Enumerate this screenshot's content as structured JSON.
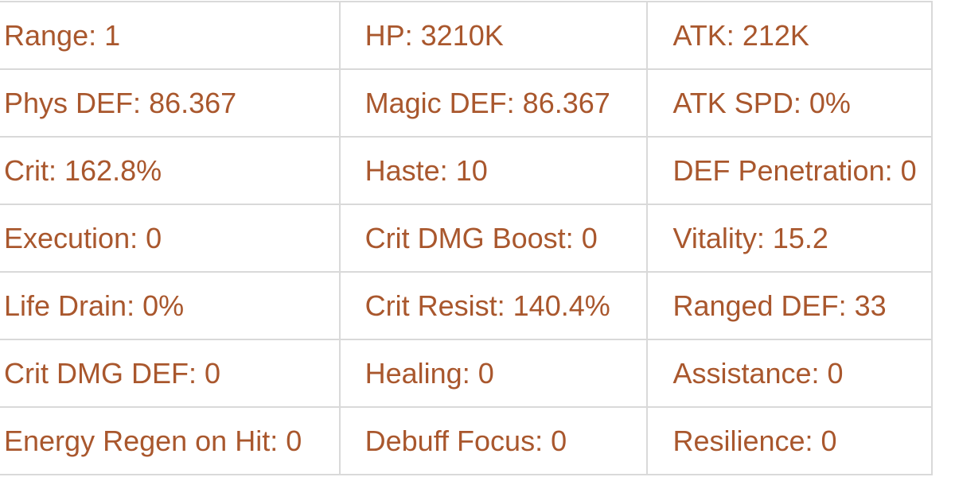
{
  "theme": {
    "text_color": "#a9572d",
    "border_color": "#d9d9d9",
    "background_color": "#ffffff"
  },
  "stats_table": {
    "separator": ": ",
    "rows": [
      [
        {
          "label": "Range",
          "value": "1"
        },
        {
          "label": "HP",
          "value": "3210K"
        },
        {
          "label": "ATK",
          "value": "212K"
        }
      ],
      [
        {
          "label": "Phys DEF",
          "value": "86.367"
        },
        {
          "label": "Magic DEF",
          "value": "86.367"
        },
        {
          "label": "ATK SPD",
          "value": "0%"
        }
      ],
      [
        {
          "label": "Crit",
          "value": "162.8%"
        },
        {
          "label": "Haste",
          "value": "10"
        },
        {
          "label": "DEF Penetration",
          "value": "0"
        }
      ],
      [
        {
          "label": "Execution",
          "value": "0"
        },
        {
          "label": "Crit DMG Boost",
          "value": "0"
        },
        {
          "label": "Vitality",
          "value": "15.2"
        }
      ],
      [
        {
          "label": "Life Drain",
          "value": "0%"
        },
        {
          "label": "Crit Resist",
          "value": "140.4%"
        },
        {
          "label": "Ranged DEF",
          "value": "33"
        }
      ],
      [
        {
          "label": "Crit DMG DEF",
          "value": "0"
        },
        {
          "label": "Healing",
          "value": "0"
        },
        {
          "label": "Assistance",
          "value": "0"
        }
      ],
      [
        {
          "label": "Energy Regen on Hit",
          "value": "0"
        },
        {
          "label": "Debuff Focus",
          "value": "0"
        },
        {
          "label": "Resilience",
          "value": "0"
        }
      ]
    ]
  }
}
